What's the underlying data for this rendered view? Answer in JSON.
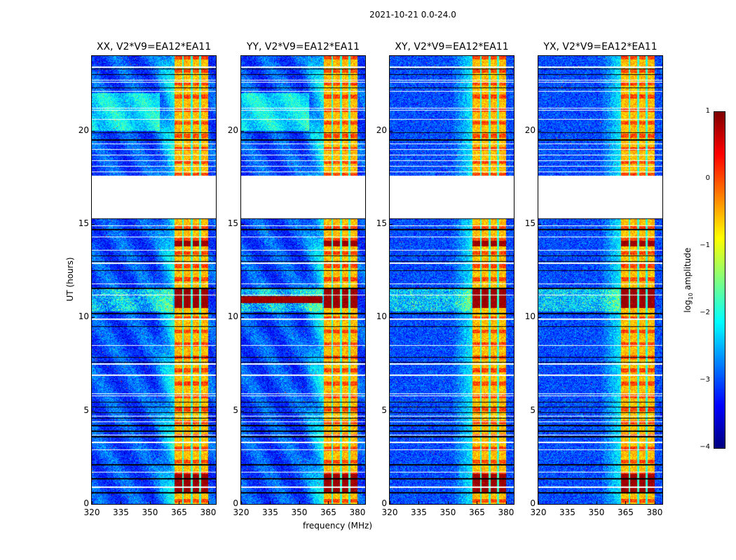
{
  "figure": {
    "title": "2021-10-21 0.0-24.0",
    "xlabel": "frequency (MHz)",
    "ylabel": "UT (hours)"
  },
  "colorbar": {
    "label_prefix": "log",
    "label_sub": "10",
    "label_suffix": " amplitude",
    "ticks": [
      "1",
      "0",
      "−1",
      "−2",
      "−3",
      "−4"
    ],
    "range": [
      -4,
      1
    ],
    "colormap": "jet"
  },
  "chart_data": {
    "type": "heatmap",
    "panels": [
      {
        "title": "XX, V2*V9=EA12*EA11",
        "pol": "XX"
      },
      {
        "title": "YY, V2*V9=EA12*EA11",
        "pol": "YY"
      },
      {
        "title": "XY, V2*V9=EA12*EA11",
        "pol": "XY"
      },
      {
        "title": "YX, V2*V9=EA12*EA11",
        "pol": "YX"
      }
    ],
    "x_range_mhz": [
      320,
      384
    ],
    "y_range_hours": [
      0,
      24
    ],
    "x_ticks": [
      "320",
      "335",
      "350",
      "365",
      "380"
    ],
    "x_tick_values": [
      320,
      335,
      350,
      365,
      380
    ],
    "y_ticks": [
      "0",
      "5",
      "10",
      "15",
      "20"
    ],
    "y_tick_values": [
      0,
      5,
      10,
      15,
      20
    ],
    "z_label": "log10 amplitude",
    "background_level": -3.0,
    "rfi_band_columns_mhz": [
      [
        362.5,
        366.5
      ],
      [
        367.5,
        371
      ],
      [
        372,
        375.5
      ],
      [
        376.5,
        380
      ]
    ],
    "rfi_band_level": -0.7,
    "strong_rfi_hours": [
      [
        10.5,
        11.6
      ],
      [
        0.6,
        1.6
      ],
      [
        13.8,
        14.1
      ]
    ],
    "flagged_hours": [
      [
        15.3,
        17.6
      ]
    ],
    "white_line_hours": [
      0.9,
      1.7,
      2.9,
      3.3,
      3.7,
      4.4,
      4.7,
      5.8,
      5.9,
      6.9,
      7.5,
      8.5,
      9.9,
      11.2,
      11.8,
      12.9,
      13.6,
      14.3,
      14.9,
      17.8,
      18.1,
      18.4,
      18.7,
      19.0,
      19.3,
      20.6,
      21.1,
      21.2,
      22.1,
      22.6,
      22.7,
      23.4
    ],
    "black_line_hours": [
      0.6,
      1.35,
      2.1,
      3.6,
      3.9,
      4.2,
      4.6,
      4.9,
      5.2,
      5.45,
      7.6,
      7.85,
      9.5,
      10.2,
      11.55,
      12.5,
      13.0,
      13.3,
      14.7,
      15.3,
      19.5,
      19.9,
      22.3,
      23.0,
      23.3
    ]
  }
}
